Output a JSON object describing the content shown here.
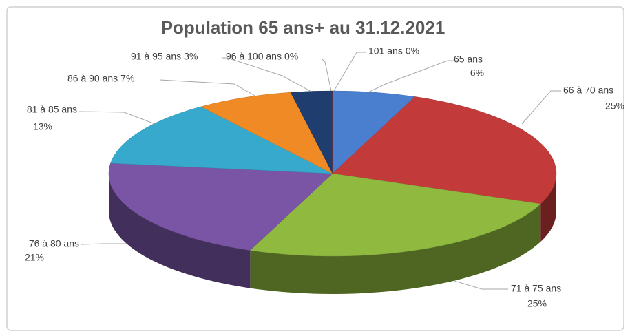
{
  "chart_data": {
    "type": "pie3d",
    "title": "Population 65 ans+ au 31.12.2021",
    "categories": [
      "65 ans",
      "66 à 70 ans",
      "71 à 75 ans",
      "76 à 80 ans",
      "81 à 85 ans",
      "86 à 90 ans",
      "91 à 95 ans",
      "96 à 100 ans",
      "101 ans"
    ],
    "values": [
      6,
      25,
      25,
      21,
      13,
      7,
      3,
      0,
      0
    ],
    "value_labels": [
      "6%",
      "25%",
      "25%",
      "21%",
      "13%",
      "7%",
      "3%",
      "0%",
      "0%"
    ],
    "colors": [
      "#4a7fd0",
      "#c23a3a",
      "#8fba3f",
      "#7a55a6",
      "#36a9cc",
      "#f08a24",
      "#1f3d6e",
      "#8c1c1c",
      "#b03a2e"
    ]
  }
}
